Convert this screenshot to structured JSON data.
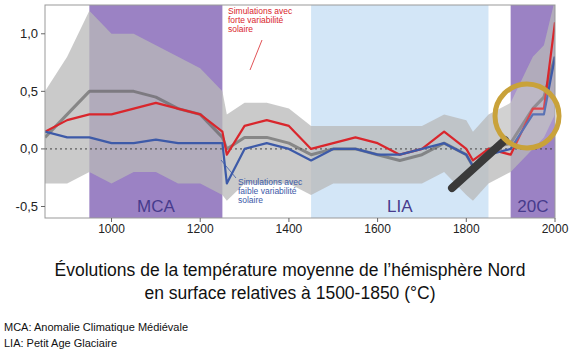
{
  "chart_data": {
    "type": "line",
    "title": "Évolutions de la température moyenne de l’hémisphère Nord en surface relatives à 1500-1850 (°C)",
    "notes": [
      "MCA: Anomalie Climatique Médiévale",
      "LIA: Petit Age Glaciaire"
    ],
    "x": [
      850,
      900,
      950,
      1000,
      1050,
      1100,
      1150,
      1200,
      1250,
      1260,
      1300,
      1350,
      1400,
      1450,
      1500,
      1550,
      1600,
      1650,
      1700,
      1750,
      1800,
      1815,
      1850,
      1900,
      1950,
      1975,
      2000
    ],
    "xlim": [
      850,
      2000
    ],
    "xticks": [
      1000,
      1200,
      1400,
      1600,
      1800,
      2000
    ],
    "ylim": [
      -0.6,
      1.25
    ],
    "yticks": [
      {
        "value": 1,
        "label": "1,0"
      },
      {
        "value": 0.5,
        "label": "0,5"
      },
      {
        "value": 0,
        "label": "0,0"
      },
      {
        "value": -0.5,
        "label": "-0,5"
      }
    ],
    "baseline": 0,
    "periods": [
      {
        "label": "MCA",
        "start": 950,
        "end": 1250,
        "color": "#9b82c4"
      },
      {
        "label": "LIA",
        "start": 1450,
        "end": 1850,
        "color": "#d3e6f7"
      },
      {
        "label": "20C",
        "start": 1900,
        "end": 2000,
        "color": "#9b82c4"
      }
    ],
    "band": {
      "color": "#b8b8b8",
      "lower": [
        -0.3,
        -0.3,
        -0.2,
        -0.3,
        -0.2,
        -0.2,
        -0.3,
        -0.3,
        -0.4,
        -0.45,
        -0.3,
        -0.3,
        -0.3,
        -0.4,
        -0.3,
        -0.3,
        -0.3,
        -0.3,
        -0.3,
        -0.2,
        -0.4,
        -0.45,
        -0.3,
        -0.2,
        0.0,
        0.1,
        0.3
      ],
      "upper": [
        0.5,
        0.8,
        1.2,
        1.0,
        1.0,
        0.9,
        0.8,
        0.7,
        0.5,
        0.3,
        0.4,
        0.4,
        0.35,
        0.2,
        0.2,
        0.2,
        0.2,
        0.2,
        0.2,
        0.3,
        0.25,
        0.15,
        0.3,
        0.4,
        0.8,
        0.9,
        1.3
      ]
    },
    "series": [
      {
        "color": "#5a5a5a",
        "values": [
          0.1,
          0.3,
          0.5,
          0.5,
          0.5,
          0.45,
          0.35,
          0.3,
          0.1,
          0.0,
          0.1,
          0.1,
          0.05,
          -0.05,
          0.0,
          0.0,
          -0.05,
          -0.1,
          -0.05,
          0.05,
          -0.05,
          -0.15,
          0.0,
          0.05,
          0.35,
          0.45,
          0.8
        ]
      },
      {
        "name": "Simulations avec forte variabilité solaire",
        "color": "#d9262c",
        "values": [
          0.15,
          0.25,
          0.3,
          0.3,
          0.35,
          0.4,
          0.35,
          0.3,
          0.15,
          -0.05,
          0.2,
          0.25,
          0.2,
          0.0,
          0.05,
          0.1,
          0.05,
          -0.05,
          0.0,
          0.15,
          0.0,
          -0.1,
          0.0,
          -0.05,
          0.35,
          0.35,
          1.1
        ]
      },
      {
        "name": "Simulations avec faible variabilité solaire",
        "color": "#3d5aa8",
        "values": [
          0.15,
          0.1,
          0.1,
          0.05,
          0.05,
          0.08,
          0.05,
          0.05,
          0.05,
          -0.3,
          0.0,
          0.05,
          0.0,
          -0.1,
          0.0,
          0.0,
          -0.05,
          -0.05,
          0.0,
          0.05,
          -0.05,
          -0.15,
          -0.05,
          0.0,
          0.3,
          0.3,
          0.8
        ]
      }
    ]
  }
}
